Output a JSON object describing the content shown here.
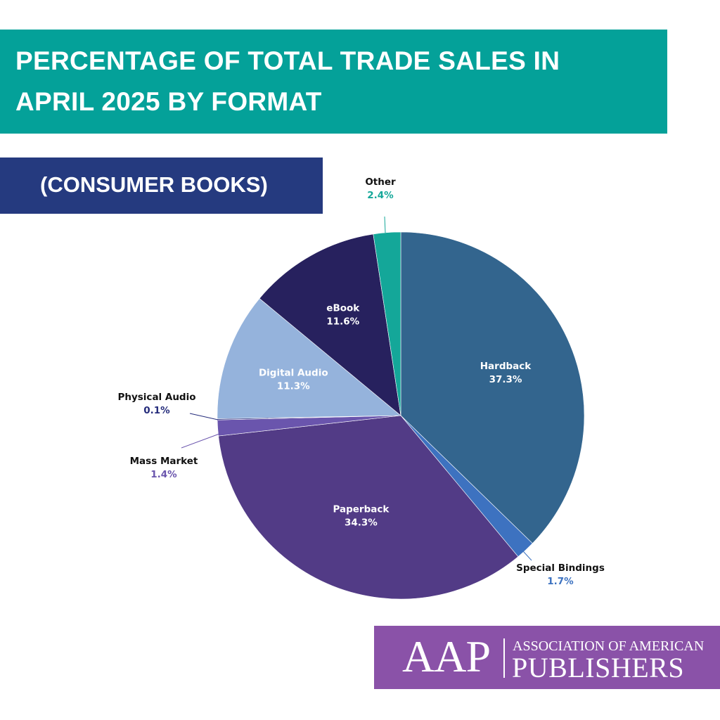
{
  "header": {
    "title_line1": "PERCENTAGE OF TOTAL TRADE SALES IN",
    "title_line2": "APRIL 2025 BY FORMAT",
    "subtitle": "(CONSUMER BOOKS)"
  },
  "logo": {
    "mark": "AAP",
    "line1": "ASSOCIATION OF AMERICAN",
    "line2": "PUBLISHERS"
  },
  "colors": {
    "title_banner": "#04a199",
    "subtitle_banner": "#253a7f",
    "logo_banner": "#8a52a8"
  },
  "chart_data": {
    "type": "pie",
    "slices": [
      {
        "label": "Hardback",
        "value": 37.3,
        "display": "37.3%",
        "color": "#33658e",
        "label_placement": "inside"
      },
      {
        "label": "Special Bindings",
        "value": 1.7,
        "display": "1.7%",
        "color": "#3d72c0",
        "label_placement": "outside-bottom-right"
      },
      {
        "label": "Paperback",
        "value": 34.3,
        "display": "34.3%",
        "color": "#523b86",
        "label_placement": "inside"
      },
      {
        "label": "Mass Market",
        "value": 1.4,
        "display": "1.4%",
        "color": "#6a55ad",
        "label_placement": "outside-left"
      },
      {
        "label": "Physical Audio",
        "value": 0.1,
        "display": "0.1%",
        "color": "#262d7c",
        "label_placement": "outside-left"
      },
      {
        "label": "Digital Audio",
        "value": 11.3,
        "display": "11.3%",
        "color": "#95b3dc",
        "label_placement": "inside"
      },
      {
        "label": "eBook",
        "value": 11.6,
        "display": "11.6%",
        "color": "#27215e",
        "label_placement": "inside"
      },
      {
        "label": "Other",
        "value": 2.4,
        "display": "2.4%",
        "color": "#14a799",
        "label_placement": "outside-top"
      }
    ]
  }
}
